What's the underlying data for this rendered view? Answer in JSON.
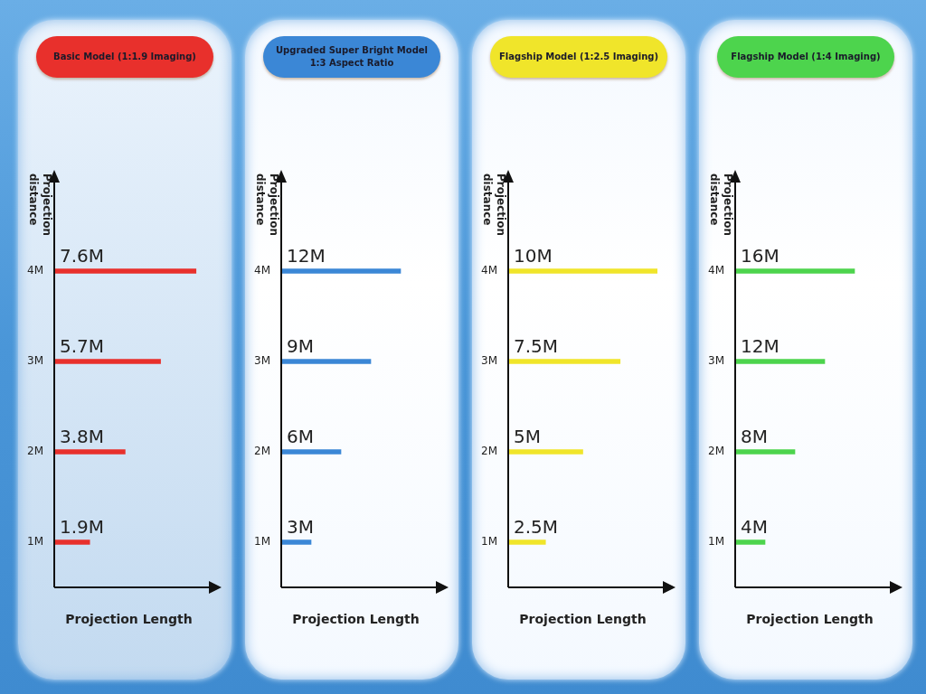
{
  "chart_data": [
    {
      "type": "bar",
      "orientation": "horizontal",
      "title": "Basic Model (1:1.9 Imaging)",
      "xlabel": "Projection Length",
      "ylabel": "Projection distance",
      "categories": [
        "4M",
        "3M",
        "2M",
        "1M"
      ],
      "values": [
        7.6,
        5.7,
        3.8,
        1.9
      ],
      "value_labels": [
        "7.6M",
        "5.7M",
        "3.8M",
        "1.9M"
      ],
      "color": "#e8302c",
      "tick_labels": "y"
    },
    {
      "type": "bar",
      "orientation": "horizontal",
      "title": "Upgraded Super Bright Model 1:3 Aspect Ratio",
      "xlabel": "Projection Length",
      "ylabel": "Projection distance",
      "categories": [
        "4M",
        "3M",
        "2M",
        "1M"
      ],
      "values": [
        12,
        9,
        6,
        3
      ],
      "value_labels": [
        "12M",
        "9M",
        "6M",
        "3M"
      ],
      "color": "#3b87d6",
      "tick_labels": "y"
    },
    {
      "type": "bar",
      "orientation": "horizontal",
      "title": "Flagship Model (1:2.5 Imaging)",
      "xlabel": "Projection Length",
      "ylabel": "Projection distance",
      "categories": [
        "4M",
        "3M",
        "2M",
        "1M"
      ],
      "values": [
        10,
        7.5,
        5,
        2.5
      ],
      "value_labels": [
        "10M",
        "7.5M",
        "5M",
        "2.5M"
      ],
      "color": "#f0e52a",
      "tick_labels": "y"
    },
    {
      "type": "bar",
      "orientation": "horizontal",
      "title": "Flagship Model (1:4 Imaging)",
      "xlabel": "Projection Length",
      "ylabel": "Projection distance",
      "categories": [
        "4M",
        "3M",
        "2M",
        "1M"
      ],
      "values": [
        16,
        12,
        8,
        4
      ],
      "value_labels": [
        "16M",
        "12M",
        "8M",
        "4M"
      ],
      "color": "#4dd44d",
      "tick_labels": "y"
    }
  ]
}
